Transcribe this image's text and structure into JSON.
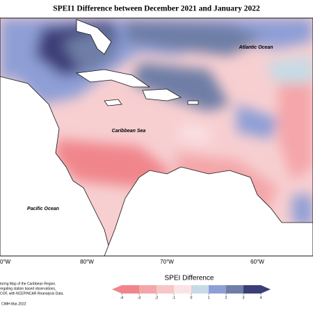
{
  "title": "SPEI1 Difference between December 2021 and January 2022",
  "map": {
    "labels": [
      "Atlantic Ocean",
      "Caribbean Sea",
      "Pacific Ocean"
    ],
    "longitudes": [
      "0°W",
      "80°W",
      "70°W",
      "60°W"
    ]
  },
  "legend": {
    "title": "SPEI Difference",
    "ticks": [
      -4,
      -3,
      -2,
      -1,
      0,
      1,
      2,
      3,
      4
    ],
    "colors": [
      "#f0868c",
      "#f4a6a9",
      "#f7c6c8",
      "#fbe3e5",
      "#c6dbe5",
      "#8e9fd6",
      "#6e7ea6",
      "#3c3e78"
    ]
  },
  "footer": {
    "lines": [
      "toring Map of the Caribbean Region.",
      "regating station based observations,",
      "COF, with NCEP/NCAR Reanalysis Data."
    ],
    "credit": "CIMH Mar-2022"
  }
}
